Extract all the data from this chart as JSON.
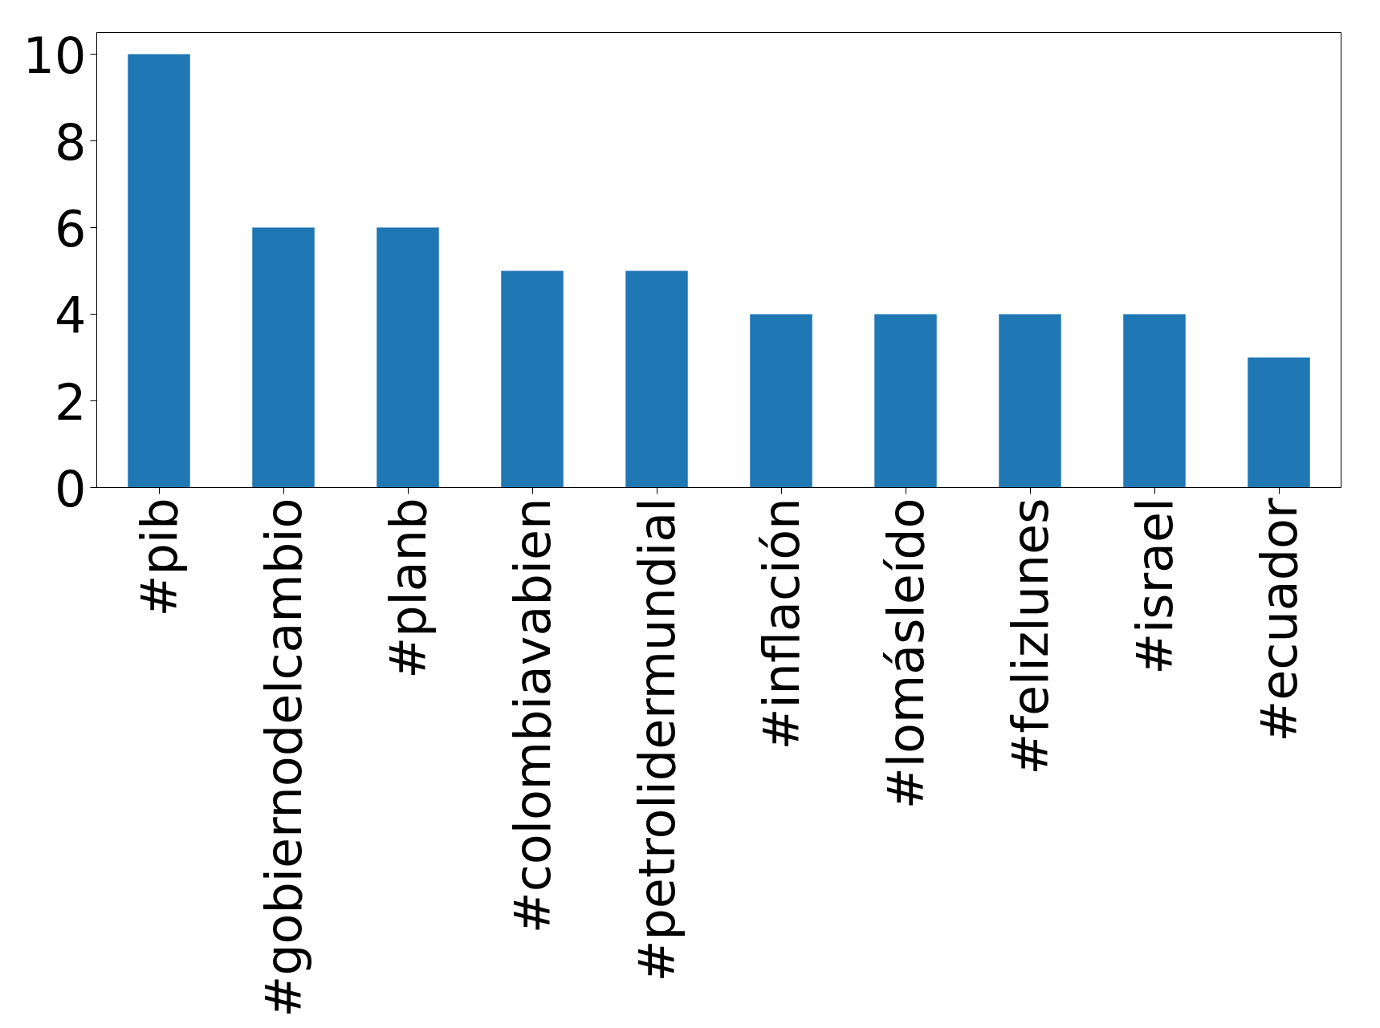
{
  "chart_data": {
    "type": "bar",
    "categories": [
      "#pib",
      "#gobiernodelcambio",
      "#planb",
      "#colombiavabien",
      "#petrolidermundial",
      "#inflación",
      "#lomásleído",
      "#felizlunes",
      "#israel",
      "#ecuador"
    ],
    "values": [
      10,
      6,
      6,
      5,
      5,
      4,
      4,
      4,
      4,
      3
    ],
    "color": "#1f77b4",
    "ylim": [
      0,
      10.5
    ],
    "yticks": [
      0,
      2,
      4,
      6,
      8,
      10
    ],
    "grid": false
  }
}
